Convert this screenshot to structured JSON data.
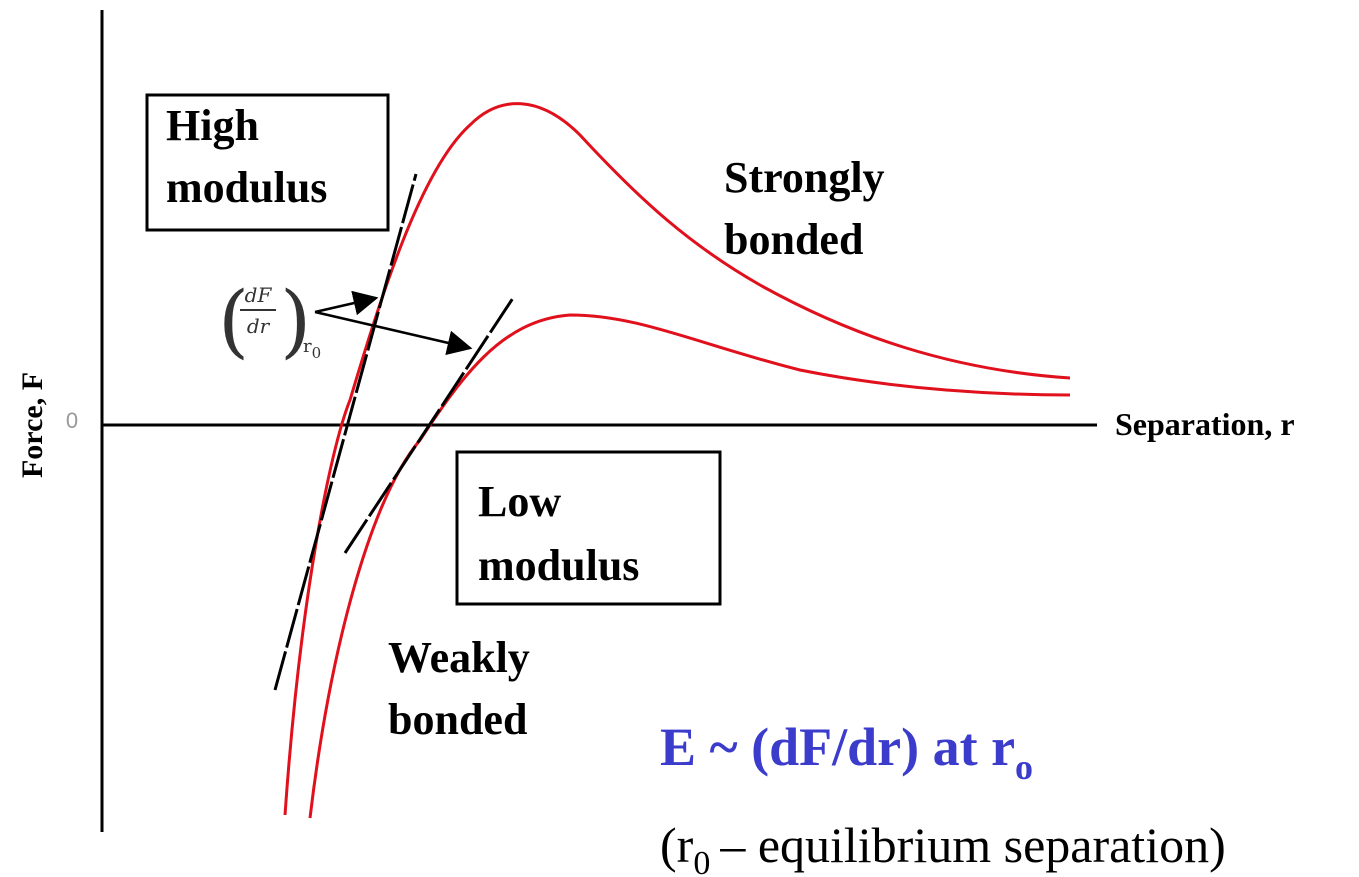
{
  "axes": {
    "y_label": "Force, F",
    "x_label": "Separation, r",
    "origin": "0"
  },
  "boxes": {
    "high_modulus": [
      "High",
      "modulus"
    ],
    "low_modulus": [
      "Low",
      "modulus"
    ]
  },
  "curves": {
    "strong": [
      "Strongly",
      "bonded"
    ],
    "weak": [
      "Weakly",
      "bonded"
    ]
  },
  "slope_label": {
    "numerator": "dF",
    "denominator": "dr",
    "subscript": "r",
    "subscript_index": "0"
  },
  "equation": {
    "main": "E ~ (dF/dr) at r",
    "subscript": "o"
  },
  "note": {
    "open": "(r",
    "subscript": "0",
    "rest": "– equilibrium separation)"
  }
}
